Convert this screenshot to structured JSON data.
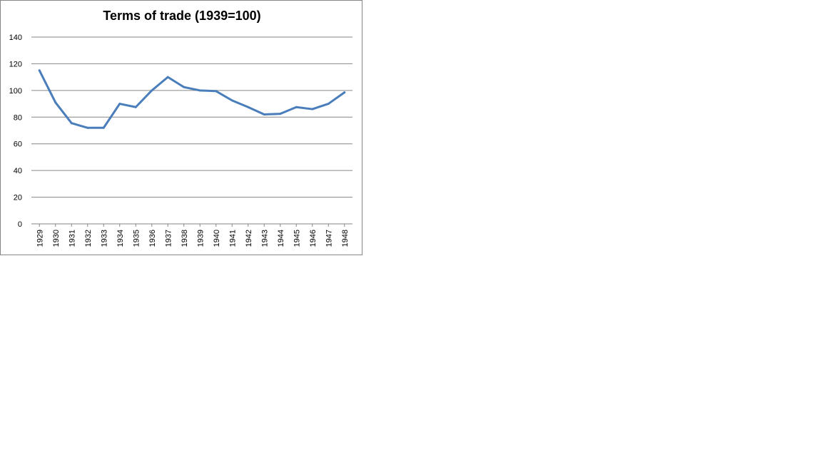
{
  "chart_data": {
    "type": "line",
    "title": "Terms of trade (1939=100)",
    "xlabel": "",
    "ylabel": "",
    "x": [
      "1929",
      "1930",
      "1931",
      "1932",
      "1933",
      "1934",
      "1935",
      "1936",
      "1937",
      "1938",
      "1939",
      "1940",
      "1941",
      "1942",
      "1943",
      "1944",
      "1945",
      "1946",
      "1947",
      "1948"
    ],
    "series": [
      {
        "values": [
          115,
          91,
          75.5,
          72,
          72,
          90,
          87.5,
          100,
          110,
          102.5,
          100,
          99.5,
          92.5,
          87.5,
          82,
          82.5,
          87.5,
          86,
          90,
          98.5
        ]
      }
    ],
    "ylim": [
      0,
      140
    ],
    "yticks": [
      "0",
      "20",
      "40",
      "60",
      "80",
      "100",
      "120",
      "140"
    ],
    "grid": true,
    "legend": "none",
    "line_color": "#4a7ebb",
    "grid_color": "#868686"
  }
}
